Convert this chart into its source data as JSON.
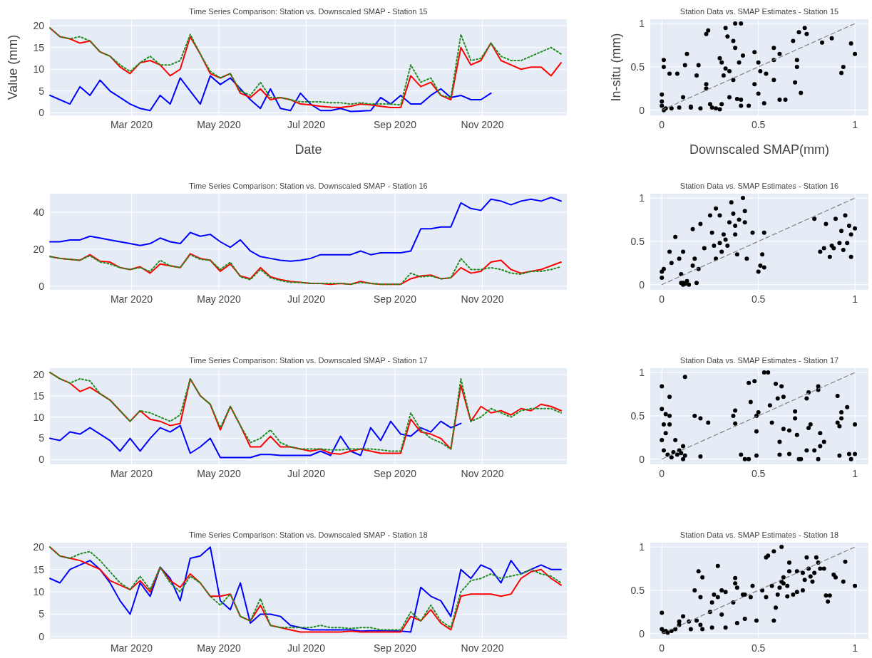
{
  "chart_data": [
    {
      "type": "line",
      "title": "Time Series Comparison: Station vs. Downscaled SMAP - Station 15",
      "xlabel": "Date",
      "ylabel": "Value (mm)",
      "grid": true,
      "x": [
        "2020-01-04",
        "2020-01-11",
        "2020-01-18",
        "2020-01-25",
        "2020-02-01",
        "2020-02-08",
        "2020-02-15",
        "2020-02-22",
        "2020-02-29",
        "2020-03-07",
        "2020-03-14",
        "2020-03-21",
        "2020-03-28",
        "2020-04-04",
        "2020-04-11",
        "2020-04-18",
        "2020-04-25",
        "2020-05-02",
        "2020-05-09",
        "2020-05-16",
        "2020-05-23",
        "2020-05-30",
        "2020-06-06",
        "2020-06-13",
        "2020-06-20",
        "2020-06-27",
        "2020-07-04",
        "2020-07-11",
        "2020-07-18",
        "2020-07-25",
        "2020-08-01",
        "2020-08-08",
        "2020-08-15",
        "2020-08-22",
        "2020-08-29",
        "2020-09-05",
        "2020-09-12",
        "2020-09-19",
        "2020-09-26",
        "2020-10-03",
        "2020-10-10",
        "2020-10-17",
        "2020-10-24",
        "2020-10-31",
        "2020-11-07",
        "2020-11-14",
        "2020-11-21",
        "2020-11-28",
        "2020-12-05",
        "2020-12-12",
        "2020-12-19",
        "2020-12-26"
      ],
      "xlim": [
        "2020-01-04",
        "2020-12-30"
      ],
      "xticks": [
        {
          "value": "2020-03-01",
          "label": "Mar 2020"
        },
        {
          "value": "2020-05-01",
          "label": "May 2020"
        },
        {
          "value": "2020-07-01",
          "label": "Jul 2020"
        },
        {
          "value": "2020-09-01",
          "label": "Sep 2020"
        },
        {
          "value": "2020-11-01",
          "label": "Nov 2020"
        }
      ],
      "ylim": [
        -0.6,
        21.5
      ],
      "yticks": [
        0,
        5,
        10,
        15,
        20
      ],
      "series": [
        {
          "color": "#0000ff",
          "values": [
            4,
            3,
            2,
            6,
            4,
            7.5,
            5,
            3.5,
            2,
            1,
            0.5,
            4,
            2,
            8,
            5,
            2,
            8.5,
            6.5,
            8,
            5.5,
            3,
            1,
            5.5,
            1,
            0.5,
            4.5,
            2,
            0.5,
            0.5,
            1,
            0.3,
            0.4,
            0.5,
            3.5,
            2,
            4,
            2,
            2,
            4,
            5.5,
            3.5,
            4,
            3,
            3,
            4.5,
            null,
            null,
            null,
            null,
            null,
            null,
            null
          ]
        },
        {
          "color": "#ff0000",
          "values": [
            19.5,
            17.5,
            17,
            16,
            16.5,
            14,
            13,
            10.5,
            9,
            11.5,
            12,
            11,
            8.5,
            10,
            17.5,
            13.5,
            9,
            8,
            9,
            4.5,
            3.5,
            5.5,
            3,
            3.5,
            3,
            2,
            1.8,
            1.5,
            1.3,
            1.2,
            1.5,
            2,
            1.8,
            1.5,
            1.2,
            1.2,
            8.5,
            6,
            7,
            4,
            3,
            15,
            11,
            12,
            16,
            12,
            11,
            10,
            10.5,
            10.5,
            8.5,
            11.5
          ]
        },
        {
          "color": "#228b22",
          "line_style": "dotted",
          "values": [
            19.5,
            17.5,
            17,
            17.5,
            16.5,
            14,
            13,
            11,
            9.5,
            11.5,
            13,
            11,
            11,
            12,
            18,
            13.5,
            9.5,
            8,
            9,
            5,
            4,
            7,
            3.5,
            3.5,
            3,
            2.5,
            2.5,
            2.5,
            2.3,
            2.3,
            2,
            2.3,
            2,
            2,
            2,
            1.8,
            11,
            7,
            8,
            4,
            3.5,
            18,
            12,
            12.5,
            16,
            13,
            12,
            12,
            13,
            14,
            15,
            13.5
          ]
        }
      ]
    },
    {
      "type": "scatter",
      "title": "Station Data vs. SMAP Estimates - Station 15",
      "xlabel": "Downscaled SMAP(mm)",
      "ylabel": "In-situ (mm)",
      "grid": true,
      "xlim": [
        -0.06,
        1.07
      ],
      "xticks": [
        0,
        0.5,
        1
      ],
      "ylim": [
        -0.06,
        1.05
      ],
      "yticks": [
        0,
        0.5,
        1
      ],
      "series": [
        {
          "color": "#000000",
          "marker": "circle",
          "x": [
            0,
            0,
            0,
            0.01,
            0.01,
            0.04,
            0.08,
            0.13,
            0.12,
            0.19,
            0.18,
            0.11,
            0.05,
            0.09,
            0.15,
            0.2,
            0.23,
            0.23,
            0.23,
            0.24,
            0.25,
            0.26,
            0.3,
            0.31,
            0.32,
            0.33,
            0.31,
            0.33,
            0.34,
            0.35,
            0.35,
            0.37,
            0.38,
            0.38,
            0.41,
            0.4,
            0.39,
            0.41,
            0.37,
            0.41,
            0.42,
            0.45,
            0.48,
            0.48,
            0.5,
            0.5,
            0.51,
            0.53,
            0.54,
            0.58,
            0.58,
            0.58,
            0.61,
            0.61,
            0.64,
            0.68,
            0.7,
            0.7,
            0.69,
            0.71,
            0.72,
            0.74,
            0.75,
            0.83,
            0.88,
            0.93,
            0.94,
            0.98,
            1,
            0.02,
            0.28,
            0.3,
            0.15,
            0.01
          ],
          "values": [
            0.05,
            0.1,
            0.18,
            0.58,
            0.5,
            0.42,
            0.42,
            0.65,
            0.52,
            0.52,
            0.4,
            0.15,
            0.02,
            0.03,
            0.04,
            0.02,
            0.3,
            0.25,
            0.88,
            0.92,
            0.07,
            0.03,
            0.6,
            0.55,
            0.4,
            0.48,
            0.07,
            0.95,
            0.85,
            0.45,
            0.15,
            0.8,
            0.72,
            1,
            1,
            0.55,
            0.13,
            0.12,
            0.35,
            0.05,
            0.63,
            0.05,
            0.67,
            0.3,
            0.55,
            0.19,
            0.45,
            0.08,
            0.42,
            0.72,
            0.58,
            0.35,
            0.65,
            0.12,
            0.12,
            0.8,
            0.58,
            0.5,
            0.32,
            0.9,
            0.2,
            0.95,
            0.88,
            0.78,
            0.83,
            0.43,
            0.5,
            0.77,
            0.65,
            0.02,
            0.02,
            0.01,
            0.03,
            0
          ]
        },
        {
          "type": "line",
          "color": "#808080",
          "line_style": "dashed",
          "x": [
            0,
            1
          ],
          "values": [
            0,
            1
          ]
        }
      ]
    },
    {
      "type": "line",
      "title": "Time Series Comparison: Station vs. Downscaled SMAP - Station 16",
      "grid": true,
      "x": [
        "2020-01-04",
        "2020-01-11",
        "2020-01-18",
        "2020-01-25",
        "2020-02-01",
        "2020-02-08",
        "2020-02-15",
        "2020-02-22",
        "2020-02-29",
        "2020-03-07",
        "2020-03-14",
        "2020-03-21",
        "2020-03-28",
        "2020-04-04",
        "2020-04-11",
        "2020-04-18",
        "2020-04-25",
        "2020-05-02",
        "2020-05-09",
        "2020-05-16",
        "2020-05-23",
        "2020-05-30",
        "2020-06-06",
        "2020-06-13",
        "2020-06-20",
        "2020-06-27",
        "2020-07-04",
        "2020-07-11",
        "2020-07-18",
        "2020-07-25",
        "2020-08-01",
        "2020-08-08",
        "2020-08-15",
        "2020-08-22",
        "2020-08-29",
        "2020-09-05",
        "2020-09-12",
        "2020-09-19",
        "2020-09-26",
        "2020-10-03",
        "2020-10-10",
        "2020-10-17",
        "2020-10-24",
        "2020-10-31",
        "2020-11-07",
        "2020-11-14",
        "2020-11-21",
        "2020-11-28",
        "2020-12-05",
        "2020-12-12",
        "2020-12-19",
        "2020-12-26"
      ],
      "xlim": [
        "2020-01-04",
        "2020-12-30"
      ],
      "xticks": [
        {
          "value": "2020-03-01",
          "label": "Mar 2020"
        },
        {
          "value": "2020-05-01",
          "label": "May 2020"
        },
        {
          "value": "2020-07-01",
          "label": "Jul 2020"
        },
        {
          "value": "2020-09-01",
          "label": "Sep 2020"
        },
        {
          "value": "2020-11-01",
          "label": "Nov 2020"
        }
      ],
      "ylim": [
        -2,
        50
      ],
      "yticks": [
        0,
        20,
        40
      ],
      "series": [
        {
          "color": "#0000ff",
          "values": [
            24,
            24,
            25,
            25,
            27,
            26,
            25,
            24,
            23,
            22,
            23,
            26,
            24,
            23,
            29,
            27,
            28,
            24,
            21,
            25,
            19,
            16,
            15,
            14,
            13.5,
            14,
            15,
            17,
            17,
            17,
            17,
            19,
            17,
            18,
            18,
            18,
            19,
            31,
            31,
            32,
            32,
            45,
            42,
            41,
            47,
            46,
            44,
            46,
            47,
            46,
            48,
            46
          ]
        },
        {
          "color": "#ff0000",
          "values": [
            16,
            15,
            14.5,
            14,
            17,
            13.5,
            13,
            10,
            9,
            10.5,
            7,
            12,
            11,
            10,
            17.5,
            15,
            14,
            8,
            12,
            5.5,
            4,
            10,
            5,
            3.5,
            2.5,
            2,
            1.5,
            1.5,
            1,
            1.5,
            1,
            2.5,
            1.5,
            1,
            1,
            1,
            4,
            5.5,
            6,
            4,
            4.5,
            10,
            7,
            8,
            13,
            14,
            9,
            7,
            8,
            9,
            11,
            13
          ]
        },
        {
          "color": "#228b22",
          "line_style": "dotted",
          "values": [
            16,
            15,
            14.5,
            14,
            16.5,
            13,
            12,
            10,
            9,
            10,
            8,
            14,
            11,
            10,
            17,
            14.5,
            14,
            9,
            13,
            5,
            3.5,
            9,
            4.5,
            3,
            2,
            2,
            1.5,
            1.5,
            1.5,
            1.5,
            1,
            2,
            1.5,
            1,
            1,
            1,
            7,
            5,
            5.5,
            4,
            4.5,
            15,
            9,
            9,
            10,
            9,
            7,
            6.5,
            8,
            8,
            9,
            10.5
          ]
        }
      ]
    },
    {
      "type": "scatter",
      "title": "Station Data vs. SMAP Estimates - Station 16",
      "grid": true,
      "xlim": [
        -0.06,
        1.07
      ],
      "xticks": [
        0,
        0.5,
        1
      ],
      "ylim": [
        -0.06,
        1.05
      ],
      "yticks": [
        0,
        0.5,
        1
      ],
      "series": [
        {
          "color": "#000000",
          "marker": "circle",
          "x": [
            0,
            0,
            0.01,
            0.04,
            0.07,
            0.05,
            0.09,
            0.1,
            0.1,
            0.11,
            0.12,
            0.13,
            0.11,
            0.16,
            0.17,
            0.16,
            0.18,
            0.19,
            0.2,
            0.22,
            0.26,
            0.25,
            0.27,
            0.28,
            0.28,
            0.3,
            0.3,
            0.31,
            0.32,
            0.33,
            0.34,
            0.35,
            0.36,
            0.37,
            0.38,
            0.38,
            0.39,
            0.4,
            0.42,
            0.43,
            0.43,
            0.44,
            0.47,
            0.5,
            0.51,
            0.52,
            0.53,
            0.53,
            0.79,
            0.82,
            0.84,
            0.85,
            0.87,
            0.89,
            0.9,
            0.92,
            0.93,
            0.95,
            0.96,
            0.97,
            0.98,
            0.98,
            1,
            0.94,
            0.88,
            0.11,
            0.14
          ],
          "values": [
            0.08,
            0.15,
            0.18,
            0.38,
            0.55,
            0.25,
            0.3,
            0.12,
            0.02,
            0,
            0.01,
            0.04,
            0.38,
            0.22,
            0.3,
            0.64,
            0.02,
            0.18,
            0.7,
            0.42,
            0.6,
            0.8,
            0.45,
            0.3,
            0.88,
            0.8,
            0.48,
            0.38,
            0.58,
            0.52,
            0.45,
            0.72,
            0.95,
            0.82,
            0.68,
            0.58,
            0.35,
            0.75,
            1,
            0.85,
            0.72,
            0.3,
            0.6,
            0.15,
            0.22,
            0.35,
            0.2,
            0.6,
            0.76,
            0.38,
            0.42,
            0.7,
            0.32,
            0.42,
            0.76,
            0.48,
            0.62,
            0.8,
            0.48,
            0.68,
            0.58,
            0.32,
            0.65,
            0.4,
            0.45,
            0.02,
            0
          ]
        },
        {
          "type": "line",
          "color": "#808080",
          "line_style": "dashed",
          "x": [
            0,
            1
          ],
          "values": [
            0,
            1
          ]
        }
      ]
    },
    {
      "type": "line",
      "title": "Time Series Comparison: Station vs. Downscaled SMAP - Station 17",
      "grid": true,
      "x": [
        "2020-01-04",
        "2020-01-11",
        "2020-01-18",
        "2020-01-25",
        "2020-02-01",
        "2020-02-08",
        "2020-02-15",
        "2020-02-22",
        "2020-02-29",
        "2020-03-07",
        "2020-03-14",
        "2020-03-21",
        "2020-03-28",
        "2020-04-04",
        "2020-04-11",
        "2020-04-18",
        "2020-04-25",
        "2020-05-02",
        "2020-05-09",
        "2020-05-16",
        "2020-05-23",
        "2020-05-30",
        "2020-06-06",
        "2020-06-13",
        "2020-06-20",
        "2020-06-27",
        "2020-07-04",
        "2020-07-11",
        "2020-07-18",
        "2020-07-25",
        "2020-08-01",
        "2020-08-08",
        "2020-08-15",
        "2020-08-22",
        "2020-08-29",
        "2020-09-05",
        "2020-09-12",
        "2020-09-19",
        "2020-09-26",
        "2020-10-03",
        "2020-10-10",
        "2020-10-17",
        "2020-10-24",
        "2020-10-31",
        "2020-11-07",
        "2020-11-14",
        "2020-11-21",
        "2020-11-28",
        "2020-12-05",
        "2020-12-12",
        "2020-12-19",
        "2020-12-26"
      ],
      "xlim": [
        "2020-01-04",
        "2020-12-30"
      ],
      "xticks": [
        {
          "value": "2020-03-01",
          "label": "Mar 2020"
        },
        {
          "value": "2020-05-01",
          "label": "May 2020"
        },
        {
          "value": "2020-07-01",
          "label": "Jul 2020"
        },
        {
          "value": "2020-09-01",
          "label": "Sep 2020"
        },
        {
          "value": "2020-11-01",
          "label": "Nov 2020"
        }
      ],
      "ylim": [
        -1.1,
        21.5
      ],
      "yticks": [
        0,
        5,
        10,
        15,
        20
      ],
      "series": [
        {
          "color": "#0000ff",
          "values": [
            5,
            4.5,
            6.5,
            6,
            7.5,
            6,
            4.5,
            2,
            5,
            2,
            5,
            7.5,
            6.5,
            8,
            1.5,
            3,
            5,
            0.5,
            0.5,
            0.5,
            0.5,
            1.2,
            1.2,
            1,
            1,
            1,
            1,
            2,
            1,
            5.5,
            2,
            1,
            7.5,
            4.5,
            9,
            6,
            5.5,
            7.5,
            6.5,
            9,
            7.5,
            8.5,
            null,
            null,
            null,
            null,
            null,
            null,
            null,
            null,
            null,
            null
          ]
        },
        {
          "color": "#ff0000",
          "values": [
            20.5,
            19,
            18,
            16,
            17,
            15.5,
            14,
            11.5,
            9,
            11.5,
            9.5,
            9,
            8,
            8.5,
            19,
            15,
            13,
            7,
            12.5,
            8,
            3,
            3,
            5.5,
            3,
            3,
            2.5,
            2,
            2.5,
            1.5,
            1.3,
            2,
            2.5,
            2,
            1.5,
            1.5,
            1.5,
            9.5,
            6.5,
            6,
            5,
            2.5,
            17.5,
            9,
            12.5,
            11,
            11.5,
            10.5,
            12,
            11.5,
            13,
            12.5,
            11.5
          ]
        },
        {
          "color": "#228b22",
          "line_style": "dotted",
          "values": [
            20.5,
            19,
            18,
            19,
            18.5,
            15.5,
            14,
            11.5,
            9,
            11.5,
            11,
            10,
            9,
            10.5,
            19,
            15,
            13,
            7.5,
            12.5,
            8,
            4,
            5,
            7,
            4,
            3,
            2.5,
            2.5,
            2.5,
            2.3,
            2.3,
            2.5,
            2.5,
            2.5,
            2.3,
            2,
            2,
            11,
            7,
            5,
            4,
            2.5,
            19,
            9,
            10,
            12,
            11,
            10,
            11.5,
            12,
            12,
            12,
            11
          ]
        }
      ]
    },
    {
      "type": "scatter",
      "title": "Station Data vs. SMAP Estimates - Station 17",
      "grid": true,
      "xlim": [
        -0.06,
        1.07
      ],
      "xticks": [
        0,
        0.5,
        1
      ],
      "ylim": [
        -0.06,
        1.05
      ],
      "yticks": [
        0,
        0.5,
        1
      ],
      "series": [
        {
          "color": "#000000",
          "marker": "circle",
          "x": [
            0,
            0,
            0.01,
            0,
            0.02,
            0.04,
            0.04,
            0.04,
            0.02,
            0.01,
            0.03,
            0.05,
            0.06,
            0.07,
            0.08,
            0.09,
            0.1,
            0.11,
            0.11,
            0.12,
            0.12,
            0.17,
            0.2,
            0.2,
            0.24,
            0.37,
            0.38,
            0.38,
            0.41,
            0.43,
            0.45,
            0.45,
            0.46,
            0.48,
            0.49,
            0.49,
            0.49,
            0.5,
            0.53,
            0.55,
            0.56,
            0.57,
            0.59,
            0.6,
            0.61,
            0.61,
            0.62,
            0.63,
            0.63,
            0.66,
            0.66,
            0.69,
            0.69,
            0.7,
            0.71,
            0.72,
            0.75,
            0.75,
            0.76,
            0.76,
            0.77,
            0.79,
            0.81,
            0.81,
            0.82,
            0.82,
            0.84,
            0.81,
            0.91,
            0.91,
            0.92,
            0.93,
            0.93,
            0.92,
            0.96,
            0.97,
            0.98,
            1,
            1
          ],
          "values": [
            0.84,
            0.58,
            0.4,
            0.22,
            0.52,
            0.72,
            0.5,
            0.4,
            0.3,
            0.1,
            0.05,
            0.02,
            0.08,
            0.22,
            0.05,
            0.1,
            0.07,
            0.15,
            0,
            0.04,
            0.95,
            0.5,
            0.47,
            0.03,
            0.42,
            0.5,
            0.56,
            0.41,
            0.05,
            0,
            0,
            0.88,
            0.66,
            0.9,
            0.32,
            0.5,
            0.04,
            0.54,
            1,
            1,
            0.62,
            0.42,
            0.87,
            0.7,
            0.2,
            0.05,
            0.84,
            0.72,
            0.35,
            0.33,
            0.06,
            0.47,
            0.55,
            0.28,
            0,
            0,
            0.7,
            0.1,
            0.77,
            0.36,
            0.4,
            0.1,
            0.84,
            0.8,
            0.3,
            0.15,
            0.2,
            0,
            0.73,
            0.42,
            0.38,
            0.47,
            0.54,
            0.04,
            0.6,
            0.06,
            0,
            0.06,
            0.4
          ]
        },
        {
          "type": "line",
          "color": "#808080",
          "line_style": "dashed",
          "x": [
            0,
            1
          ],
          "values": [
            0,
            1
          ]
        }
      ]
    },
    {
      "type": "line",
      "title": "Time Series Comparison: Station vs. Downscaled SMAP - Station 18",
      "grid": true,
      "x": [
        "2020-01-04",
        "2020-01-11",
        "2020-01-18",
        "2020-01-25",
        "2020-02-01",
        "2020-02-08",
        "2020-02-15",
        "2020-02-22",
        "2020-02-29",
        "2020-03-07",
        "2020-03-14",
        "2020-03-21",
        "2020-03-28",
        "2020-04-04",
        "2020-04-11",
        "2020-04-18",
        "2020-04-25",
        "2020-05-02",
        "2020-05-09",
        "2020-05-16",
        "2020-05-23",
        "2020-05-30",
        "2020-06-06",
        "2020-06-13",
        "2020-06-20",
        "2020-06-27",
        "2020-07-04",
        "2020-07-11",
        "2020-07-18",
        "2020-07-25",
        "2020-08-01",
        "2020-08-08",
        "2020-08-15",
        "2020-08-22",
        "2020-08-29",
        "2020-09-05",
        "2020-09-12",
        "2020-09-19",
        "2020-09-26",
        "2020-10-03",
        "2020-10-10",
        "2020-10-17",
        "2020-10-24",
        "2020-10-31",
        "2020-11-07",
        "2020-11-14",
        "2020-11-21",
        "2020-11-28",
        "2020-12-05",
        "2020-12-12",
        "2020-12-19",
        "2020-12-26"
      ],
      "xlim": [
        "2020-01-04",
        "2020-12-30"
      ],
      "xticks": [
        {
          "value": "2020-03-01",
          "label": "Mar 2020"
        },
        {
          "value": "2020-05-01",
          "label": "May 2020"
        },
        {
          "value": "2020-07-01",
          "label": "Jul 2020"
        },
        {
          "value": "2020-09-01",
          "label": "Sep 2020"
        },
        {
          "value": "2020-11-01",
          "label": "Nov 2020"
        }
      ],
      "ylim": [
        -0.5,
        21
      ],
      "yticks": [
        0,
        5,
        10,
        15,
        20
      ],
      "series": [
        {
          "color": "#0000ff",
          "values": [
            13,
            12,
            15,
            16,
            17,
            15,
            12,
            8,
            5,
            12,
            9,
            15.5,
            13,
            8,
            17.5,
            18,
            20,
            8,
            6,
            12,
            3,
            5,
            5,
            4.5,
            2.5,
            2,
            1.5,
            1.5,
            1.5,
            1.5,
            1.5,
            1.2,
            1.3,
            1.3,
            1.3,
            1.2,
            1,
            11,
            9,
            8,
            4.5,
            15,
            13,
            16,
            15,
            12,
            17,
            14,
            15,
            16,
            15,
            15
          ]
        },
        {
          "color": "#ff0000",
          "values": [
            20,
            18,
            17.5,
            17,
            16,
            15,
            12.5,
            11.5,
            10.5,
            12.5,
            10,
            15.5,
            12.5,
            11,
            14,
            12,
            9,
            9,
            9.5,
            4.5,
            3.5,
            7,
            2.5,
            2,
            1.5,
            1,
            1,
            1,
            1,
            1,
            1.2,
            1,
            1,
            1,
            1,
            1,
            4.5,
            3.5,
            6,
            3,
            1.5,
            9,
            9.5,
            9.5,
            9.5,
            9,
            9.5,
            13,
            14.5,
            15,
            13,
            11.5
          ]
        },
        {
          "color": "#228b22",
          "line_style": "dotted",
          "values": [
            20,
            18,
            17.5,
            18.5,
            19,
            17,
            14.5,
            12,
            10.5,
            13.5,
            10.5,
            15.5,
            12,
            10,
            13.5,
            12,
            9,
            7,
            9.5,
            4.5,
            3.5,
            8.5,
            2.5,
            2,
            2,
            2,
            2,
            2.5,
            2,
            2,
            1.8,
            2,
            2,
            1.5,
            1.5,
            1.5,
            5.5,
            3.5,
            7,
            3.5,
            2,
            10,
            12.5,
            13,
            14,
            13,
            13.5,
            14,
            15,
            14,
            13.5,
            12
          ]
        }
      ]
    },
    {
      "type": "scatter",
      "title": "Station Data vs. SMAP Estimates - Station 18",
      "grid": true,
      "xlim": [
        -0.06,
        1.07
      ],
      "xticks": [
        0,
        0.5,
        1
      ],
      "ylim": [
        -0.06,
        1.05
      ],
      "yticks": [
        0,
        0.5,
        1
      ],
      "series": [
        {
          "color": "#000000",
          "marker": "circle",
          "x": [
            0,
            0,
            0.01,
            0.02,
            0.03,
            0.05,
            0.07,
            0.09,
            0.09,
            0.11,
            0.14,
            0.15,
            0.17,
            0.19,
            0.2,
            0.21,
            0.2,
            0.21,
            0.18,
            0.25,
            0.26,
            0.26,
            0.27,
            0.29,
            0.29,
            0.31,
            0.31,
            0.33,
            0.33,
            0.37,
            0.38,
            0.38,
            0.39,
            0.39,
            0.42,
            0.43,
            0.43,
            0.46,
            0.47,
            0.49,
            0.52,
            0.54,
            0.54,
            0.55,
            0.58,
            0.57,
            0.58,
            0.59,
            0.6,
            0.61,
            0.62,
            0.62,
            0.63,
            0.63,
            0.65,
            0.65,
            0.66,
            0.66,
            0.68,
            0.7,
            0.7,
            0.73,
            0.73,
            0.74,
            0.75,
            0.76,
            0.77,
            0.78,
            0.79,
            0.8,
            0.81,
            0.82,
            0.84,
            0.85,
            0.86,
            0.87,
            0.89,
            0.9,
            0.94,
            0.95,
            1
          ],
          "values": [
            0.24,
            0.05,
            0.02,
            0.03,
            0.01,
            0.03,
            0.05,
            0.1,
            0.14,
            0.2,
            0.14,
            0.05,
            0.5,
            0.72,
            0.42,
            0.65,
            0.1,
            0.05,
            0.15,
            0.25,
            0.36,
            0.07,
            0.45,
            0.78,
            0.42,
            0.22,
            0.5,
            0.48,
            0.07,
            0.36,
            0.64,
            0.58,
            0.53,
            0.12,
            0.45,
            0.45,
            0.17,
            0.42,
            0.55,
            0.15,
            0.5,
            0.42,
            0.88,
            0.9,
            0.95,
            0.55,
            0.15,
            0.3,
            0.45,
            0.53,
            1,
            0.6,
            0.65,
            0.58,
            0.55,
            0.43,
            0.72,
            0.82,
            0.45,
            0.72,
            0.48,
            0.7,
            0.5,
            0.62,
            0.88,
            0.75,
            0.66,
            0.6,
            0.7,
            0.88,
            0.82,
            0.75,
            0.75,
            0.44,
            0.37,
            0.44,
            0.68,
            0.65,
            0.6,
            0.83,
            0.55
          ]
        },
        {
          "type": "line",
          "color": "#808080",
          "line_style": "dashed",
          "x": [
            0,
            1
          ],
          "values": [
            0,
            1
          ]
        }
      ]
    }
  ]
}
